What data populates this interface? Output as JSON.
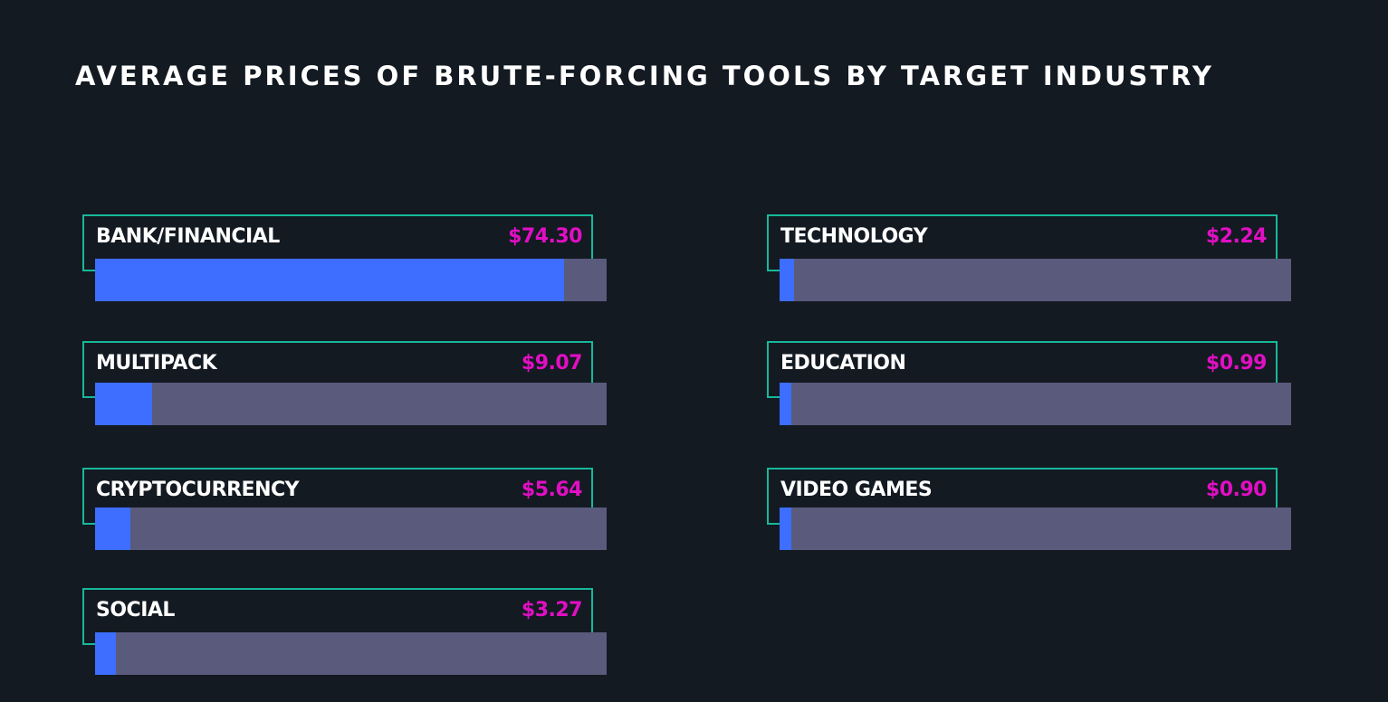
{
  "chart_data": {
    "type": "bar",
    "title": "AVERAGE PRICES OF BRUTE-FORCING TOOLS BY TARGET INDUSTRY",
    "categories": [
      "BANK/FINANCIAL",
      "MULTIPACK",
      "CRYPTOCURRENCY",
      "SOCIAL",
      "TECHNOLOGY",
      "EDUCATION",
      "VIDEO GAMES"
    ],
    "values": [
      74.3,
      9.07,
      5.64,
      3.27,
      2.24,
      0.99,
      0.9
    ],
    "value_labels": [
      "$74.30",
      "$9.07",
      "$5.64",
      "$3.27",
      "$2.24",
      "$0.99",
      "$0.90"
    ],
    "xlabel": "",
    "ylabel": "",
    "unit": "$",
    "grid": false,
    "orientation": "horizontal",
    "colors": {
      "background": "#131a22",
      "bar_fill": "#3d6eff",
      "bar_track": "#5a5a7c",
      "frame": "#17b89a",
      "value_text": "#e10fc3",
      "label_text": "#ffffff"
    }
  }
}
